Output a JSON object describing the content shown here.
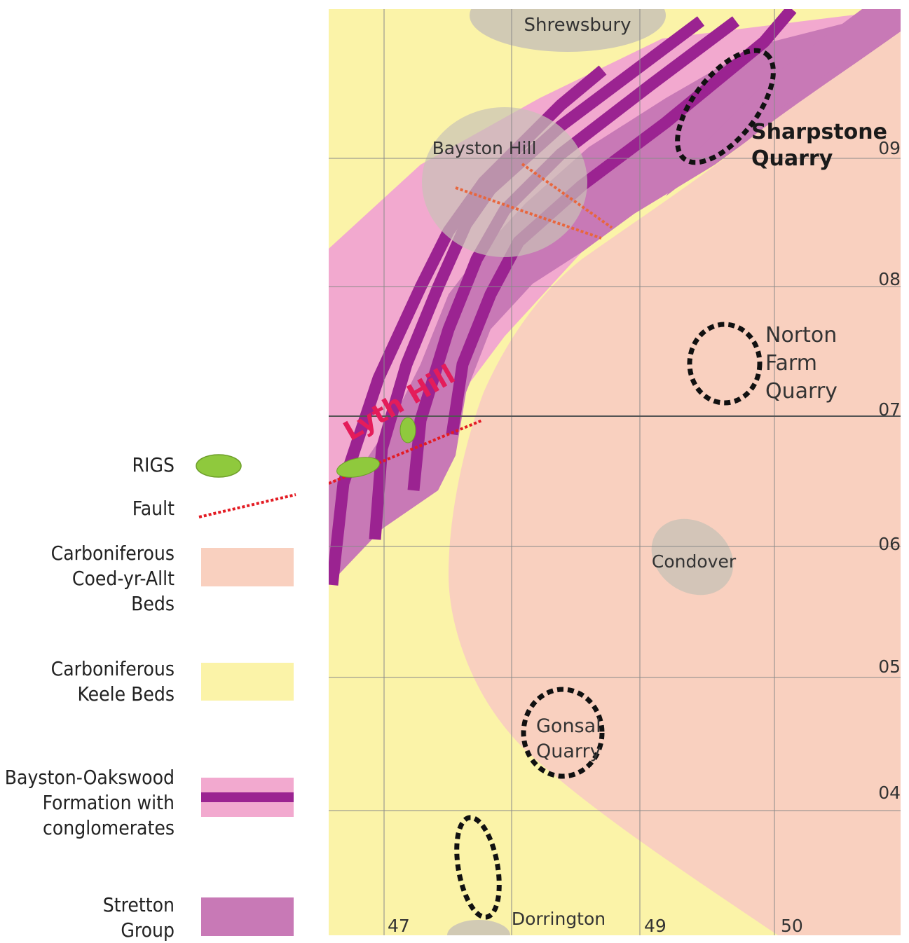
{
  "legend": {
    "rigs": "RIGS",
    "fault": "Fault",
    "coed": "Carboniferous\nCoed-yr-Allt\nBeds",
    "keele": "Carboniferous\nKeele Beds",
    "bayston": "Bayston-Oakswood\nFormation with\nconglomerates",
    "stretton": "Stretton\nGroup"
  },
  "colors": {
    "coed": "#f9d0bf",
    "keele": "#fbf3a8",
    "bayston_light": "#f2a9cf",
    "bayston_dark": "#9b2391",
    "stretton": "#c879b6",
    "rigs": "#8fc93d",
    "fault": "#e31b23",
    "settlement": "#c9c2b6",
    "quarry_ring": "#111111",
    "lyth_hill": "#e41c5a"
  },
  "map": {
    "places": {
      "shrewsbury": "Shrewsbury",
      "bayston_hill": "Bayston Hill",
      "condover": "Condover",
      "dorrington": "Dorrington"
    },
    "quarries": {
      "sharpstone": "Sharpstone\nQuarry",
      "norton": "Norton\nFarm\nQuarry",
      "gonsal": "Gonsal\nQuarry"
    },
    "lyth_hill": "Lyth Hill",
    "northings": [
      "09",
      "08",
      "07",
      "06",
      "05",
      "04"
    ],
    "eastings": [
      "47",
      "49",
      "50"
    ]
  }
}
